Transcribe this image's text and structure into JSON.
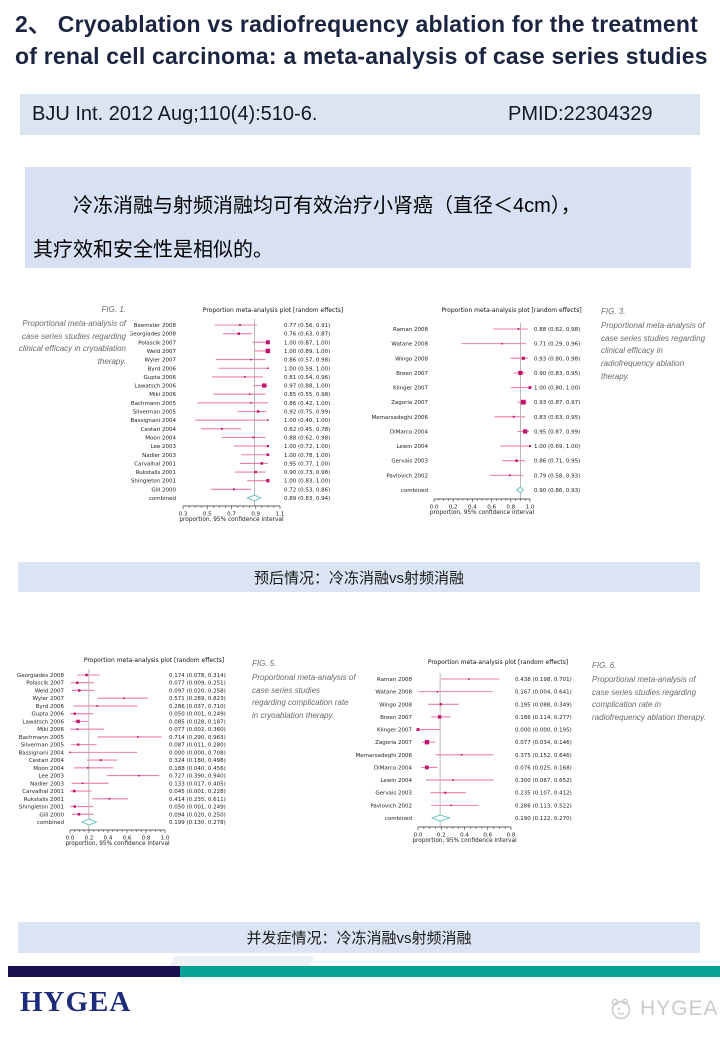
{
  "title_line1": "2、 Cryoablation vs radiofrequency ablation for the treatment",
  "title_line2": "of renal cell carcinoma: a meta-analysis of case series studies",
  "citation": {
    "journal": "BJU Int. 2012 Aug;110(4):510-6.",
    "pmid": "PMID:22304329"
  },
  "summary": {
    "line1": "冷冻消融与射频消融均可有效治疗小肾癌（直径＜4cm），",
    "line2": "其疗效和安全性是相似的。"
  },
  "section_bars": {
    "prognosis": "预后情况：冷冻消融vs射频消融",
    "complication": "并发症情况：冷冻消融vs射频消融"
  },
  "footer": {
    "logo": "HYGEA",
    "watermark": "HYGEA"
  },
  "colors": {
    "marker": "#c0136d",
    "ci_line": "#ef7fae",
    "diamond": "#5bbcbe",
    "bar_bg": "#dbe4f3",
    "divider_navy": "#1a1050",
    "divider_teal": "#06a296",
    "title_text": "#1b2440"
  },
  "chart_data": [
    {
      "type": "forest",
      "fig": "FIG. 1.",
      "caption": "Proportional meta-analysis of case series studies regarding clinical efficacy in cryoablation therapy.",
      "title": "Proportion meta-analysis plot [random effects]",
      "xlabel": "proportion, 95% confidence interval",
      "xmin": 0.3,
      "xmax": 1.1,
      "xticks": [
        0.3,
        0.5,
        0.7,
        0.9,
        1.1
      ],
      "decimals": 2,
      "studies": [
        [
          "Beemster 2008",
          0.77,
          0.56,
          0.91
        ],
        [
          "Georgiades 2008",
          0.76,
          0.63,
          0.87
        ],
        [
          "Polascik 2007",
          1.0,
          0.87,
          1.0
        ],
        [
          "Weld 2007",
          1.0,
          0.89,
          1.0
        ],
        [
          "Wyler 2007",
          0.86,
          0.57,
          0.98
        ],
        [
          "Byrd 2006",
          1.0,
          0.59,
          1.0
        ],
        [
          "Gupta 2006",
          0.81,
          0.54,
          0.96
        ],
        [
          "Lawatsch 2006",
          0.97,
          0.88,
          1.0
        ],
        [
          "Miki 2006",
          0.85,
          0.55,
          0.98
        ],
        [
          "Bachmann 2005",
          0.86,
          0.42,
          1.0
        ],
        [
          "Silverman 2005",
          0.92,
          0.75,
          0.99
        ],
        [
          "Bassignani 2004",
          1.0,
          0.4,
          1.0
        ],
        [
          "Cestari 2004",
          0.62,
          0.45,
          0.78
        ],
        [
          "Moon 2004",
          0.88,
          0.62,
          0.98
        ],
        [
          "Lee 2003",
          1.0,
          0.72,
          1.0
        ],
        [
          "Nadler 2003",
          1.0,
          0.78,
          1.0
        ],
        [
          "Carvalhal 2001",
          0.95,
          0.77,
          1.0
        ],
        [
          "Rukstalis 2001",
          0.9,
          0.73,
          0.98
        ],
        [
          "Shingleton 2001",
          1.0,
          0.83,
          1.0
        ],
        [
          "Gill 2000",
          0.72,
          0.53,
          0.86
        ]
      ],
      "combined": [
        "combined",
        0.89,
        0.83,
        0.94
      ]
    },
    {
      "type": "forest",
      "fig": "FIG. 3.",
      "caption": "Proportional meta-analysis of case series studies regarding clinical efficacy in radiofrequency ablation therapy.",
      "title": "Proportion meta-analysis plot [random effects]",
      "xlabel": "proportion, 95% confidence interval",
      "xmin": 0.0,
      "xmax": 1.0,
      "xticks": [
        0.0,
        0.2,
        0.4,
        0.6,
        0.8,
        1.0
      ],
      "decimals": 2,
      "studies": [
        [
          "Raman 2008",
          0.88,
          0.62,
          0.98
        ],
        [
          "Watane 2008",
          0.71,
          0.29,
          0.96
        ],
        [
          "Wingo 2008",
          0.93,
          0.8,
          0.98
        ],
        [
          "Breen 2007",
          0.9,
          0.83,
          0.95
        ],
        [
          "Klinger 2007",
          1.0,
          0.8,
          1.0
        ],
        [
          "Zagoria 2007",
          0.93,
          0.87,
          0.97
        ],
        [
          "Memarsadeghi 2006",
          0.83,
          0.63,
          0.95
        ],
        [
          "DiMarco 2004",
          0.95,
          0.87,
          0.99
        ],
        [
          "Lewin 2004",
          1.0,
          0.69,
          1.0
        ],
        [
          "Gervais 2003",
          0.86,
          0.71,
          0.95
        ],
        [
          "Pavlovich 2002",
          0.79,
          0.58,
          0.93
        ]
      ],
      "combined": [
        "combined",
        0.9,
        0.86,
        0.93
      ]
    },
    {
      "type": "forest",
      "fig": "FIG. 5.",
      "caption": "Proportional meta-analysis of case series studies regarding complication rate in cryoablation therapy.",
      "title": "Proportion meta-analysis plot [random effects]",
      "xlabel": "proportion, 95% confidence interval",
      "xmin": 0.0,
      "xmax": 1.0,
      "xticks": [
        0.0,
        0.2,
        0.4,
        0.6,
        0.8,
        1.0
      ],
      "decimals": 3,
      "studies": [
        [
          "Georgiades 2008",
          0.174,
          0.078,
          0.314
        ],
        [
          "Polascik 2007",
          0.077,
          0.009,
          0.251
        ],
        [
          "Weld 2007",
          0.097,
          0.02,
          0.258
        ],
        [
          "Wyler 2007",
          0.571,
          0.289,
          0.823
        ],
        [
          "Byrd 2006",
          0.286,
          0.037,
          0.71
        ],
        [
          "Gupta 2006",
          0.05,
          0.001,
          0.249
        ],
        [
          "Lawatsch 2006",
          0.085,
          0.028,
          0.187
        ],
        [
          "Miki 2006",
          0.077,
          0.002,
          0.36
        ],
        [
          "Bachmann 2005",
          0.714,
          0.29,
          0.963
        ],
        [
          "Silverman 2005",
          0.087,
          0.011,
          0.28
        ],
        [
          "Bassignani 2004",
          0.0,
          0.0,
          0.708
        ],
        [
          "Cestari 2004",
          0.324,
          0.18,
          0.498
        ],
        [
          "Moon 2004",
          0.188,
          0.04,
          0.456
        ],
        [
          "Lee 2003",
          0.727,
          0.39,
          0.94
        ],
        [
          "Nadler 2003",
          0.133,
          0.017,
          0.405
        ],
        [
          "Carvalhal 2001",
          0.045,
          0.001,
          0.228
        ],
        [
          "Rukstalis 2001",
          0.414,
          0.235,
          0.611
        ],
        [
          "Shingleton 2001",
          0.05,
          0.001,
          0.249
        ],
        [
          "Gill 2000",
          0.094,
          0.02,
          0.25
        ]
      ],
      "combined": [
        "combined",
        0.199,
        0.13,
        0.278
      ]
    },
    {
      "type": "forest",
      "fig": "FIG. 6.",
      "caption": "Proportional meta-analysis of case series studies regarding complication rate in radiofrequency ablation therapy.",
      "title": "Proportion meta-analysis plot [random effects]",
      "xlabel": "proportion, 95% confidence interval",
      "xmin": 0.0,
      "xmax": 0.8,
      "xticks": [
        0.0,
        0.2,
        0.4,
        0.6,
        0.8
      ],
      "decimals": 3,
      "studies": [
        [
          "Raman 2008",
          0.438,
          0.198,
          0.701
        ],
        [
          "Watane 2008",
          0.167,
          0.004,
          0.641
        ],
        [
          "Wingo 2008",
          0.195,
          0.088,
          0.349
        ],
        [
          "Breen 2007",
          0.186,
          0.114,
          0.277
        ],
        [
          "Klinger 2007",
          0.0,
          0.0,
          0.195
        ],
        [
          "Zagoria 2007",
          0.077,
          0.034,
          0.146
        ],
        [
          "Memarsadeghi 2006",
          0.375,
          0.152,
          0.646
        ],
        [
          "DiMarco 2004",
          0.076,
          0.025,
          0.168
        ],
        [
          "Lewin 2004",
          0.3,
          0.067,
          0.652
        ],
        [
          "Gervais 2003",
          0.235,
          0.107,
          0.412
        ],
        [
          "Pavlovich 2002",
          0.286,
          0.113,
          0.522
        ]
      ],
      "combined": [
        "combined",
        0.19,
        0.122,
        0.27
      ]
    }
  ]
}
